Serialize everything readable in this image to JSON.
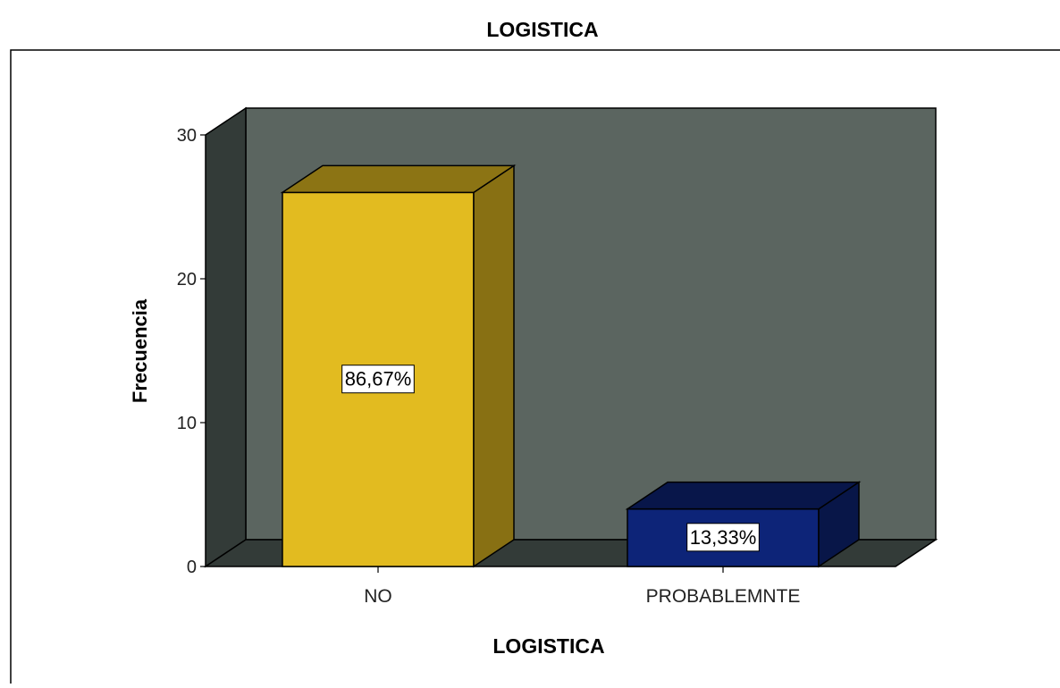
{
  "chart_data": {
    "type": "bar",
    "title": "LOGISTICA",
    "xlabel": "LOGISTICA",
    "ylabel": "Frecuencia",
    "categories": [
      "NO",
      "PROBABLEMNTE"
    ],
    "values": [
      26,
      4
    ],
    "data_labels": [
      "86,67%",
      "13,33%"
    ],
    "colors": [
      "#e2bb20",
      "#0d2478"
    ],
    "ylim": [
      0,
      30
    ],
    "yticks": [
      0,
      10,
      20,
      30
    ],
    "grid": false,
    "legend": "none",
    "style": "3d"
  }
}
